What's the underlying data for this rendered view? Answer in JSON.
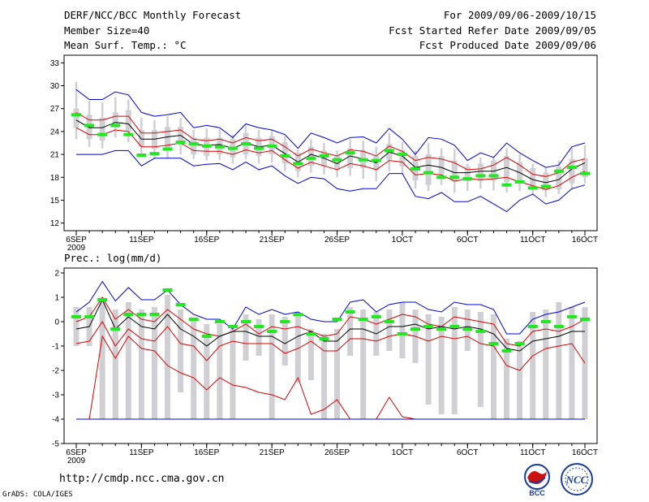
{
  "header": {
    "title": "DERF/NCC/BCC Monthly Forecast",
    "member_size": "Member Size=40",
    "variable": "Mean Surf. Temp.: °C",
    "period": "For 2009/09/06-2009/10/15",
    "start_ref": "Fcst Started Refer Date 2009/09/05",
    "produced": "Fcst Produced Date 2009/09/06"
  },
  "footer": {
    "url": "http://cmdp.ncc.cma.gov.cn",
    "grads": "GrADS: COLA/IGES",
    "logo1_text": "BCC",
    "logo2_text": "NCC"
  },
  "colors": {
    "box": "#d0d0d4",
    "median": "#22e822",
    "mean": "#000000",
    "spread": "#dd0000",
    "extreme": "#0000dd",
    "frame": "#000000"
  },
  "chart_data": [
    {
      "type": "line",
      "name": "temp-panel",
      "title": "Mean Surf. Temp.: °C",
      "xlabel": "",
      "ylabel": "°C",
      "ylim": [
        11,
        34
      ],
      "yticks": [
        12,
        15,
        18,
        21,
        24,
        27,
        30,
        33
      ],
      "x_dates": [
        "9/6",
        "9/7",
        "9/8",
        "9/9",
        "9/10",
        "9/11",
        "9/12",
        "9/13",
        "9/14",
        "9/15",
        "9/16",
        "9/17",
        "9/18",
        "9/19",
        "9/20",
        "9/21",
        "9/22",
        "9/23",
        "9/24",
        "9/25",
        "9/26",
        "9/27",
        "9/28",
        "9/29",
        "9/30",
        "10/1",
        "10/2",
        "10/3",
        "10/4",
        "10/5",
        "10/6",
        "10/7",
        "10/8",
        "10/9",
        "10/10",
        "10/11",
        "10/12",
        "10/13",
        "10/14",
        "10/15"
      ],
      "xticks": [
        {
          "index": 0,
          "label": "6SEP",
          "sublabel": "2009"
        },
        {
          "index": 5,
          "label": "11SEP"
        },
        {
          "index": 10,
          "label": "16SEP"
        },
        {
          "index": 15,
          "label": "21SEP"
        },
        {
          "index": 20,
          "label": "26SEP"
        },
        {
          "index": 25,
          "label": "1OCT"
        },
        {
          "index": 30,
          "label": "6OCT"
        },
        {
          "index": 35,
          "label": "11OCT"
        },
        {
          "index": 39,
          "label": "16OCT"
        }
      ],
      "series": [
        {
          "name": "max",
          "role": "extreme",
          "values": [
            29.5,
            28.2,
            28.2,
            29.2,
            28.8,
            26.5,
            26.0,
            26.2,
            26.5,
            24.5,
            24.8,
            24.5,
            23.2,
            25.0,
            24.5,
            24.2,
            23.6,
            21.8,
            23.8,
            23.2,
            22.5,
            23.2,
            23.3,
            22.5,
            24.4,
            23.0,
            21.0,
            23.2,
            23.0,
            22.2,
            20.2,
            21.2,
            20.6,
            22.5,
            21.2,
            20.2,
            19.3,
            19.6,
            22.0,
            22.5
          ]
        },
        {
          "name": "upper",
          "role": "spread",
          "values": [
            26.5,
            25.5,
            25.5,
            26.0,
            26.0,
            23.8,
            23.8,
            24.0,
            24.2,
            23.0,
            22.8,
            23.0,
            22.5,
            23.2,
            22.8,
            23.0,
            22.0,
            20.8,
            21.7,
            21.2,
            20.8,
            21.6,
            21.4,
            20.8,
            22.1,
            21.4,
            20.2,
            20.6,
            20.4,
            19.9,
            19.0,
            19.1,
            19.6,
            20.6,
            19.6,
            18.4,
            18.1,
            18.6,
            20.0,
            20.4
          ]
        },
        {
          "name": "mean",
          "role": "mean",
          "values": [
            25.5,
            24.5,
            24.5,
            25.2,
            25.0,
            23.0,
            23.0,
            23.3,
            23.5,
            22.3,
            22.2,
            22.3,
            21.8,
            22.5,
            22.0,
            22.2,
            21.1,
            20.0,
            21.0,
            20.5,
            19.8,
            20.8,
            20.4,
            19.9,
            21.3,
            20.8,
            19.3,
            19.6,
            19.3,
            18.6,
            18.6,
            18.8,
            18.8,
            19.3,
            18.6,
            17.7,
            17.3,
            17.7,
            19.1,
            19.9
          ]
        },
        {
          "name": "lower",
          "role": "spread",
          "values": [
            24.5,
            23.6,
            23.6,
            24.2,
            24.0,
            22.0,
            22.0,
            22.2,
            22.5,
            21.5,
            21.4,
            21.4,
            21.0,
            21.6,
            21.2,
            21.5,
            20.3,
            19.2,
            20.0,
            19.5,
            19.0,
            19.8,
            19.5,
            19.0,
            20.2,
            20.0,
            18.3,
            18.5,
            18.3,
            17.5,
            17.8,
            17.7,
            17.8,
            18.0,
            17.4,
            16.9,
            16.4,
            16.9,
            18.0,
            18.8
          ]
        },
        {
          "name": "min",
          "role": "extreme",
          "values": [
            21.0,
            21.0,
            21.0,
            21.5,
            21.5,
            19.5,
            20.5,
            20.5,
            20.5,
            19.5,
            19.7,
            19.8,
            19.0,
            20.0,
            19.0,
            19.5,
            18.2,
            17.2,
            18.0,
            17.8,
            16.5,
            16.2,
            16.5,
            16.5,
            18.5,
            18.5,
            15.5,
            15.2,
            16.0,
            14.8,
            14.8,
            15.5,
            14.5,
            13.5,
            15.0,
            15.8,
            14.5,
            15.0,
            16.5,
            17.0
          ]
        }
      ],
      "boxes": {
        "low": [
          24.5,
          23.0,
          22.8,
          24.5,
          24.0,
          22.0,
          21.7,
          21.5,
          22.2,
          21.0,
          20.8,
          21.0,
          20.6,
          21.0,
          20.8,
          21.0,
          19.8,
          18.8,
          19.5,
          19.4,
          19.0,
          19.2,
          19.2,
          19.0,
          20.3,
          19.4,
          17.6,
          17.0,
          18.3,
          17.5,
          17.5,
          17.5,
          17.6,
          17.4,
          17.6,
          16.4,
          16.4,
          16.4,
          17.2,
          18.0
        ],
        "high": [
          27.0,
          26.2,
          25.8,
          26.5,
          26.8,
          24.2,
          24.2,
          24.6,
          24.6,
          23.2,
          23.2,
          23.2,
          23.0,
          23.8,
          23.2,
          23.4,
          22.6,
          21.2,
          22.0,
          21.5,
          20.8,
          21.8,
          21.6,
          20.8,
          22.4,
          21.6,
          20.8,
          21.0,
          20.8,
          20.2,
          19.4,
          19.8,
          20.2,
          20.8,
          20.0,
          19.2,
          18.6,
          19.4,
          20.4,
          20.5
        ],
        "whisk_low": [
          23.0,
          22.0,
          21.8,
          23.2,
          22.6,
          20.6,
          20.5,
          20.4,
          21.0,
          20.4,
          20.2,
          20.3,
          19.8,
          20.4,
          19.8,
          19.9,
          18.8,
          18.0,
          18.6,
          18.4,
          18.0,
          18.2,
          17.8,
          17.5,
          18.8,
          18.4,
          16.5,
          16.2,
          17.0,
          16.0,
          16.2,
          16.5,
          16.3,
          16.0,
          16.2,
          15.6,
          15.4,
          15.8,
          16.4,
          17.2
        ],
        "whisk_high": [
          30.5,
          28.0,
          27.8,
          28.5,
          28.2,
          25.8,
          25.5,
          26.0,
          25.8,
          24.2,
          24.4,
          24.3,
          23.6,
          24.8,
          24.2,
          24.2,
          23.4,
          21.6,
          23.0,
          22.5,
          21.5,
          23.0,
          22.8,
          22.0,
          23.8,
          22.6,
          21.5,
          22.5,
          21.8,
          21.8,
          19.8,
          20.6,
          20.8,
          21.8,
          21.0,
          19.8,
          19.2,
          20.2,
          21.8,
          22.2
        ]
      },
      "median": [
        26.2,
        24.8,
        23.6,
        24.8,
        23.6,
        20.9,
        21.1,
        21.7,
        22.6,
        22.4,
        22.1,
        22.0,
        21.8,
        22.4,
        21.8,
        22.1,
        20.8,
        19.8,
        20.5,
        20.8,
        20.3,
        21.2,
        20.3,
        20.2,
        21.5,
        21.0,
        19.1,
        18.6,
        18.0,
        18.0,
        17.8,
        18.2,
        18.2,
        17.0,
        17.4,
        16.6,
        16.8,
        18.8,
        19.3,
        18.5
      ]
    },
    {
      "type": "line",
      "name": "precip-panel",
      "title": "Prec.: log(mm/d)",
      "xlabel": "",
      "ylabel": "log(mm/d)",
      "ylim": [
        -5,
        2.2
      ],
      "yticks": [
        -5,
        -4,
        -3,
        -2,
        -1,
        0,
        1,
        2
      ],
      "xticks": [
        {
          "index": 0,
          "label": "6SEP",
          "sublabel": "2009"
        },
        {
          "index": 5,
          "label": "11SEP"
        },
        {
          "index": 10,
          "label": "16SEP"
        },
        {
          "index": 15,
          "label": "21SEP"
        },
        {
          "index": 20,
          "label": "26SEP"
        },
        {
          "index": 25,
          "label": "1OCT"
        },
        {
          "index": 30,
          "label": "6OCT"
        },
        {
          "index": 35,
          "label": "11OCT"
        },
        {
          "index": 39,
          "label": "16OCT"
        }
      ],
      "series": [
        {
          "name": "max",
          "role": "extreme",
          "values": [
            0.4,
            0.8,
            1.65,
            0.85,
            1.4,
            0.9,
            0.9,
            1.3,
            0.7,
            0.3,
            0.1,
            0.1,
            -0.3,
            0.6,
            0.3,
            0.5,
            0.3,
            0.4,
            0.1,
            0.0,
            0.0,
            0.8,
            0.9,
            0.4,
            0.7,
            0.8,
            0.8,
            0.5,
            0.4,
            0.8,
            0.7,
            0.7,
            0.5,
            -0.5,
            -0.5,
            0.1,
            0.3,
            0.4,
            0.6,
            0.8
          ]
        },
        {
          "name": "upper",
          "role": "spread",
          "values": [
            0.0,
            0.2,
            1.0,
            0.1,
            0.5,
            0.1,
            0.0,
            0.5,
            0.1,
            -0.3,
            -0.5,
            -0.6,
            -0.4,
            -0.1,
            -0.5,
            -0.2,
            -0.3,
            -0.2,
            -0.4,
            -0.6,
            -0.5,
            0.2,
            0.1,
            -0.1,
            0.1,
            0.3,
            0.2,
            -0.1,
            -0.2,
            0.2,
            0.1,
            0.0,
            -0.1,
            -0.9,
            -1.0,
            -0.4,
            -0.3,
            -0.4,
            -0.2,
            0.1
          ]
        },
        {
          "name": "mean",
          "role": "mean",
          "values": [
            -0.3,
            -0.2,
            0.9,
            -0.3,
            0.2,
            -0.2,
            -0.3,
            0.3,
            -0.3,
            -0.6,
            -1.0,
            -0.6,
            -0.4,
            -0.4,
            -0.6,
            -0.6,
            -0.9,
            -0.6,
            -0.4,
            -0.8,
            -0.8,
            -0.3,
            -0.3,
            -0.5,
            -0.2,
            -0.2,
            -0.1,
            -0.3,
            -0.2,
            -0.3,
            -0.2,
            -0.3,
            -0.5,
            -1.1,
            -1.2,
            -0.8,
            -0.7,
            -0.6,
            -0.4,
            -0.4
          ]
        },
        {
          "name": "lower",
          "role": "spread",
          "values": [
            -0.9,
            -0.8,
            0.0,
            -1.0,
            -0.3,
            -0.7,
            -0.8,
            -0.2,
            -0.9,
            -1.0,
            -1.6,
            -1.0,
            -0.8,
            -0.9,
            -0.9,
            -0.9,
            -1.3,
            -1.1,
            -0.8,
            -1.2,
            -1.2,
            -0.7,
            -0.7,
            -0.8,
            -0.6,
            -0.5,
            -0.6,
            -0.8,
            -0.6,
            -0.7,
            -0.6,
            -0.9,
            -1.0,
            -1.8,
            -2.0,
            -1.4,
            -1.1,
            -1.0,
            -0.9,
            -1.7
          ]
        },
        {
          "name": "min",
          "role": "spread",
          "values": [
            -4.0,
            -4.0,
            -0.6,
            -1.5,
            -0.6,
            -1.1,
            -1.2,
            -1.8,
            -2.1,
            -2.3,
            -2.8,
            -2.3,
            -2.6,
            -2.7,
            -2.9,
            -3.0,
            -3.2,
            -2.3,
            -3.8,
            -3.6,
            -3.2,
            -4.0,
            -4.0,
            -4.0,
            -3.1,
            -3.9,
            -4.0,
            -4.0,
            -4.0,
            -4.0,
            -4.0,
            -4.0,
            -4.0,
            -4.0,
            -4.0,
            -4.0,
            -4.0,
            -4.0,
            -4.0,
            -4.0
          ]
        },
        {
          "name": "floor",
          "role": "extreme",
          "values": [
            -4.0,
            -4.0,
            -4.0,
            -4.0,
            -4.0,
            -4.0,
            -4.0,
            -4.0,
            -4.0,
            -4.0,
            -4.0,
            -4.0,
            -4.0,
            -4.0,
            -4.0,
            -4.0,
            -4.0,
            -4.0,
            -4.0,
            -4.0,
            -4.0,
            -4.0,
            -4.0,
            -4.0,
            -4.0,
            -4.0,
            -4.0,
            -4.0,
            -4.0,
            -4.0,
            -4.0,
            -4.0,
            -4.0,
            -4.0,
            -4.0,
            -4.0,
            -4.0,
            -4.0,
            -4.0,
            -4.0
          ]
        }
      ],
      "boxes": {
        "low": [
          -1.0,
          -1.0,
          -4.0,
          -4.0,
          -4.0,
          -4.0,
          -4.0,
          -4.0,
          -2.9,
          -4.0,
          -4.0,
          -4.0,
          -4.0,
          -1.6,
          -1.4,
          -4.0,
          -1.8,
          -2.5,
          -2.4,
          -4.0,
          -4.0,
          -1.4,
          -4.0,
          -1.4,
          -1.2,
          -1.5,
          -1.7,
          -3.4,
          -3.8,
          -3.8,
          -1.2,
          -3.5,
          -4.0,
          -4.0,
          -4.0,
          -4.0,
          -4.0,
          -4.0,
          -4.0,
          -4.0
        ],
        "high": [
          0.6,
          0.6,
          1.0,
          0.5,
          0.8,
          0.5,
          0.6,
          1.1,
          0.5,
          0.1,
          -0.1,
          -0.1,
          -0.3,
          0.3,
          0.1,
          0.3,
          0.2,
          0.4,
          -0.3,
          -0.5,
          -0.3,
          0.6,
          0.5,
          0.4,
          0.5,
          0.8,
          0.5,
          0.3,
          0.2,
          0.6,
          0.5,
          0.4,
          0.3,
          -0.7,
          -0.8,
          0.4,
          0.5,
          0.8,
          0.6,
          0.6
        ],
        "whisk_low": [
          -1.0,
          -1.0,
          -4.0,
          -4.0,
          -4.0,
          -4.0,
          -4.0,
          -4.0,
          -2.9,
          -4.0,
          -4.0,
          -4.0,
          -4.0,
          -1.6,
          -1.4,
          -4.0,
          -1.8,
          -2.5,
          -2.4,
          -4.0,
          -4.0,
          -1.4,
          -4.0,
          -1.4,
          -1.2,
          -1.5,
          -1.7,
          -3.4,
          -3.8,
          -3.8,
          -1.2,
          -3.5,
          -4.0,
          -4.0,
          -4.0,
          -4.0,
          -4.0,
          -4.0,
          -4.0,
          -4.0
        ],
        "whisk_high": [
          0.6,
          0.6,
          1.0,
          0.5,
          0.8,
          0.5,
          0.6,
          1.1,
          0.5,
          0.1,
          -0.1,
          -0.1,
          -0.3,
          0.3,
          0.1,
          0.3,
          0.2,
          0.4,
          -0.3,
          -0.5,
          -0.3,
          0.6,
          0.5,
          0.4,
          0.5,
          0.8,
          0.5,
          0.3,
          0.2,
          0.6,
          0.5,
          0.4,
          0.3,
          -0.7,
          -0.8,
          0.4,
          0.5,
          0.8,
          0.6,
          0.6
        ]
      },
      "median": [
        0.2,
        0.2,
        0.9,
        -0.3,
        0.3,
        0.3,
        0.3,
        1.3,
        0.7,
        0.1,
        -0.6,
        0.0,
        -0.2,
        0.0,
        -0.2,
        -0.4,
        0.0,
        0.3,
        -0.5,
        -0.7,
        0.1,
        0.4,
        0.1,
        0.2,
        0.0,
        -0.5,
        -0.3,
        -0.2,
        -0.3,
        -0.2,
        -0.3,
        -0.4,
        -0.9,
        -1.2,
        -0.9,
        -0.2,
        0.0,
        -0.2,
        0.2,
        0.1
      ]
    }
  ]
}
